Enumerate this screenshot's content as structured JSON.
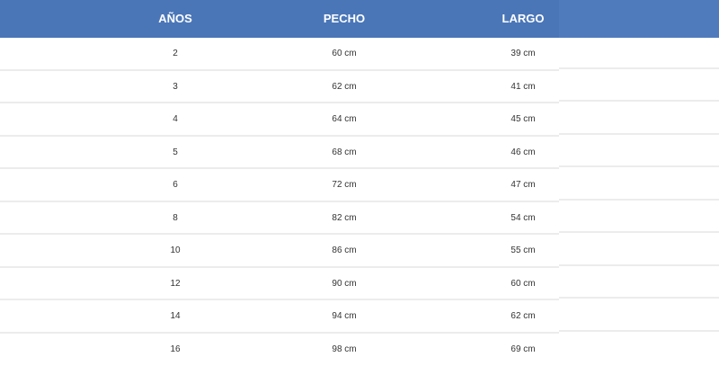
{
  "table": {
    "header_color": "#4a76b8",
    "columns": [
      "AÑOS",
      "PECHO",
      "LARGO"
    ],
    "rows": [
      [
        "2",
        "60 cm",
        "39 cm"
      ],
      [
        "3",
        "62 cm",
        "41 cm"
      ],
      [
        "4",
        "64 cm",
        "45 cm"
      ],
      [
        "5",
        "68 cm",
        "46 cm"
      ],
      [
        "6",
        "72 cm",
        "47 cm"
      ],
      [
        "8",
        "82 cm",
        "54 cm"
      ],
      [
        "10",
        "86 cm",
        "55 cm"
      ],
      [
        "12",
        "90 cm",
        "60 cm"
      ],
      [
        "14",
        "94 cm",
        "62 cm"
      ],
      [
        "16",
        "98 cm",
        "69 cm"
      ]
    ]
  }
}
